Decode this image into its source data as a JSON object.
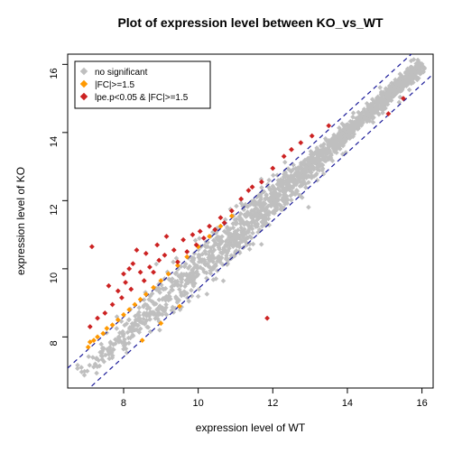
{
  "chart": {
    "type": "scatter",
    "title": "Plot of expression level between KO_vs_WT",
    "title_fontsize": 14,
    "xlabel": "expression level of WT",
    "ylabel": "expression level of KO",
    "label_fontsize": 12,
    "xlim": [
      6.5,
      16.3
    ],
    "ylim": [
      6.5,
      16.3
    ],
    "xticks": [
      8,
      10,
      12,
      14,
      16
    ],
    "yticks": [
      8,
      10,
      12,
      14,
      16
    ],
    "background_color": "#ffffff",
    "plot_border_color": "#000000",
    "grey_color": "#bfbfbf",
    "orange_color": "#ff9900",
    "red_color": "#cc2222",
    "dashed_line_color": "#1a1a99",
    "dashed_offset": 0.585,
    "marker_size": 3.8,
    "grey_cloud": {
      "seed_params": {
        "n": 1700,
        "jitter": 0.09
      }
    },
    "orange_points": [
      [
        7.05,
        7.7
      ],
      [
        7.1,
        7.85
      ],
      [
        7.2,
        7.9
      ],
      [
        7.3,
        8.0
      ],
      [
        7.45,
        8.1
      ],
      [
        7.55,
        8.25
      ],
      [
        7.7,
        8.35
      ],
      [
        7.85,
        8.5
      ],
      [
        8.0,
        8.65
      ],
      [
        8.15,
        8.8
      ],
      [
        8.3,
        8.95
      ],
      [
        8.45,
        9.1
      ],
      [
        8.6,
        9.25
      ],
      [
        8.8,
        9.45
      ],
      [
        9.0,
        9.65
      ],
      [
        9.2,
        9.85
      ],
      [
        9.45,
        10.1
      ],
      [
        9.7,
        10.35
      ],
      [
        10.0,
        10.65
      ],
      [
        10.3,
        10.95
      ],
      [
        10.6,
        11.25
      ],
      [
        10.9,
        11.55
      ],
      [
        8.5,
        7.9
      ],
      [
        9.0,
        8.4
      ],
      [
        9.5,
        8.9
      ]
    ],
    "red_points": [
      [
        7.15,
        10.65
      ],
      [
        8.35,
        10.55
      ],
      [
        8.6,
        10.45
      ],
      [
        8.15,
        10.0
      ],
      [
        7.6,
        9.5
      ],
      [
        7.85,
        9.35
      ],
      [
        8.05,
        9.6
      ],
      [
        8.45,
        9.9
      ],
      [
        8.7,
        10.05
      ],
      [
        8.95,
        10.25
      ],
      [
        9.1,
        10.4
      ],
      [
        9.35,
        10.55
      ],
      [
        9.6,
        10.85
      ],
      [
        9.85,
        11.0
      ],
      [
        10.05,
        11.1
      ],
      [
        10.3,
        11.25
      ],
      [
        10.6,
        11.5
      ],
      [
        10.9,
        11.7
      ],
      [
        11.15,
        12.05
      ],
      [
        11.35,
        12.3
      ],
      [
        11.7,
        12.55
      ],
      [
        12.0,
        12.95
      ],
      [
        12.3,
        13.3
      ],
      [
        12.5,
        13.5
      ],
      [
        12.75,
        13.7
      ],
      [
        13.05,
        13.9
      ],
      [
        13.5,
        14.2
      ],
      [
        7.1,
        8.3
      ],
      [
        7.3,
        8.55
      ],
      [
        7.5,
        8.7
      ],
      [
        7.7,
        8.95
      ],
      [
        7.95,
        9.15
      ],
      [
        8.2,
        9.4
      ],
      [
        8.55,
        9.65
      ],
      [
        8.8,
        9.9
      ],
      [
        11.85,
        8.55
      ],
      [
        15.5,
        15.0
      ],
      [
        15.1,
        14.55
      ],
      [
        9.45,
        10.2
      ],
      [
        9.7,
        10.5
      ],
      [
        9.95,
        10.7
      ],
      [
        10.15,
        10.9
      ],
      [
        10.45,
        11.15
      ],
      [
        10.7,
        11.35
      ],
      [
        8.0,
        9.85
      ],
      [
        8.25,
        10.15
      ],
      [
        8.9,
        10.7
      ],
      [
        9.15,
        10.95
      ],
      [
        11.45,
        12.4
      ]
    ],
    "legend": {
      "position": "topleft",
      "items": [
        {
          "label": "no significant",
          "color": "#bfbfbf"
        },
        {
          "label": "|FC|>=1.5",
          "color": "#ff9900"
        },
        {
          "label": "lpe.p<0.05 & |FC|>=1.5",
          "color": "#cc2222"
        }
      ]
    }
  }
}
